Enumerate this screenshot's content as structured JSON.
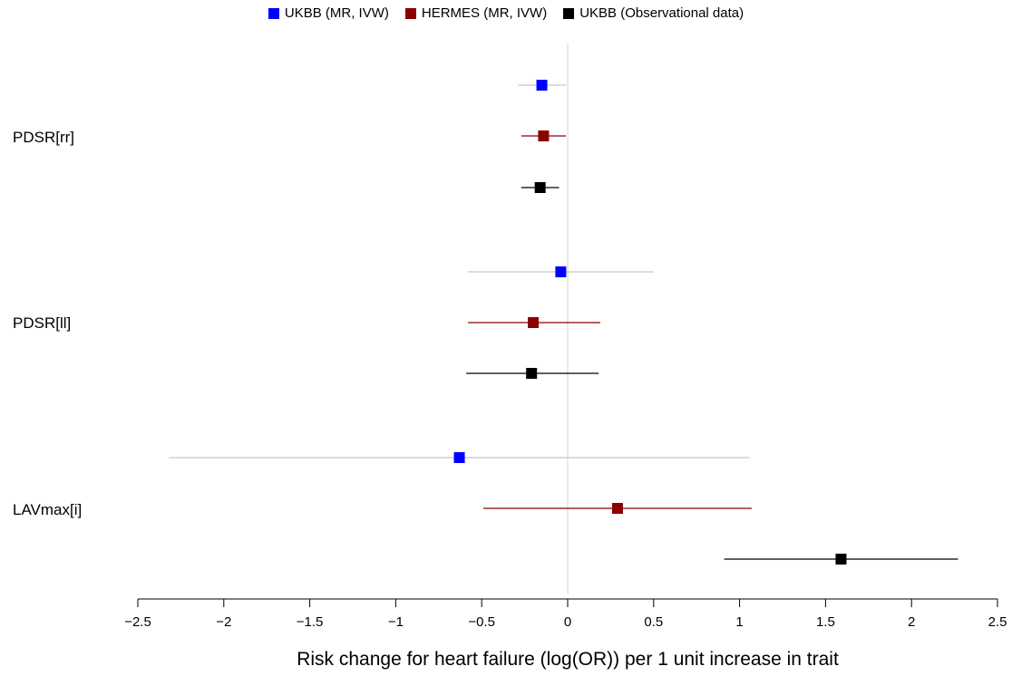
{
  "chart_data": {
    "type": "forest",
    "title": "",
    "xlabel": "Risk change for heart failure (log(OR)) per 1 unit increase in trait",
    "xlim": [
      -2.5,
      2.5
    ],
    "xticks": [
      -2.5,
      -2,
      -1.5,
      -1,
      -0.5,
      0,
      0.5,
      1,
      1.5,
      2,
      2.5
    ],
    "xtick_labels": [
      "−2.5",
      "−2",
      "−1.5",
      "−1",
      "−0.5",
      "0",
      "0.5",
      "1",
      "1.5",
      "2",
      "2.5"
    ],
    "reference_line": 0,
    "legend_position": "top-center",
    "series": [
      {
        "name": "UKBB (MR, IVW)",
        "color": "#0000ff",
        "ci_color": "#c8c8c8"
      },
      {
        "name": "HERMES (MR, IVW)",
        "color": "#8b0000",
        "ci_color": "#8b0000"
      },
      {
        "name": "UKBB (Observational data)",
        "color": "#000000",
        "ci_color": "#000000"
      }
    ],
    "groups": [
      {
        "label": "PDSR[rr]",
        "estimates": [
          {
            "series": 0,
            "est": -0.15,
            "lo": -0.29,
            "hi": -0.01
          },
          {
            "series": 1,
            "est": -0.14,
            "lo": -0.27,
            "hi": -0.01
          },
          {
            "series": 2,
            "est": -0.16,
            "lo": -0.27,
            "hi": -0.05
          }
        ]
      },
      {
        "label": "PDSR[ll]",
        "estimates": [
          {
            "series": 0,
            "est": -0.04,
            "lo": -0.58,
            "hi": 0.5
          },
          {
            "series": 1,
            "est": -0.2,
            "lo": -0.58,
            "hi": 0.19
          },
          {
            "series": 2,
            "est": -0.21,
            "lo": -0.59,
            "hi": 0.18
          }
        ]
      },
      {
        "label": "LAVmax[i]",
        "estimates": [
          {
            "series": 0,
            "est": -0.63,
            "lo": -2.32,
            "hi": 1.06
          },
          {
            "series": 1,
            "est": 0.29,
            "lo": -0.49,
            "hi": 1.07
          },
          {
            "series": 2,
            "est": 1.59,
            "lo": 0.91,
            "hi": 2.27
          }
        ]
      }
    ]
  }
}
